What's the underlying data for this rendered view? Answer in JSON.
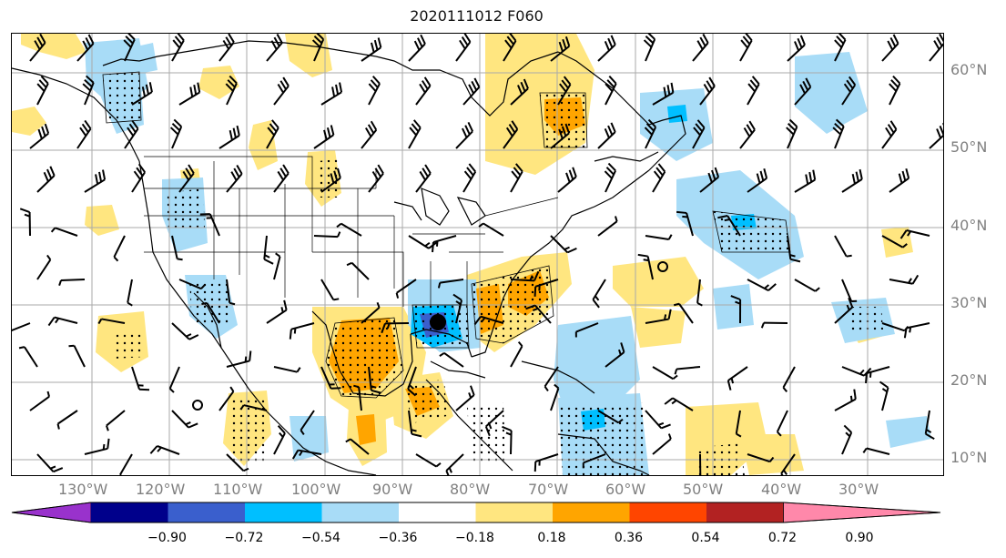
{
  "title": "2020111012 F060",
  "lat_labels": [
    "60°N",
    "50°N",
    "40°N",
    "30°N",
    "20°N",
    "10°N"
  ],
  "lon_labels": [
    "130°W",
    "120°W",
    "110°W",
    "100°W",
    "90°W",
    "80°W",
    "70°W",
    "60°W",
    "50°W",
    "40°W",
    "30°W"
  ],
  "colorbar": {
    "tick_labels": [
      "−0.90",
      "−0.72",
      "−0.54",
      "−0.36",
      "−0.18",
      "0.18",
      "0.36",
      "0.54",
      "0.72",
      "0.90"
    ],
    "colors": [
      "#9932cc",
      "#00008b",
      "#3a5fcd",
      "#00bfff",
      "#a8dcf7",
      "#ffffff",
      "#ffe680",
      "#ffa500",
      "#ff4500",
      "#b22222",
      "#ff88aa"
    ]
  },
  "palette": {
    "pos_light": "#ffe680",
    "pos_mid": "#ffa500",
    "neg_light": "#a8dcf7",
    "neg_mid": "#00bfff",
    "neg_dark": "#3a5fcd",
    "grid": "#aaaaaa"
  },
  "markers": [
    {
      "name": "storm-center-marker",
      "symbol": "filled-circle"
    }
  ]
}
